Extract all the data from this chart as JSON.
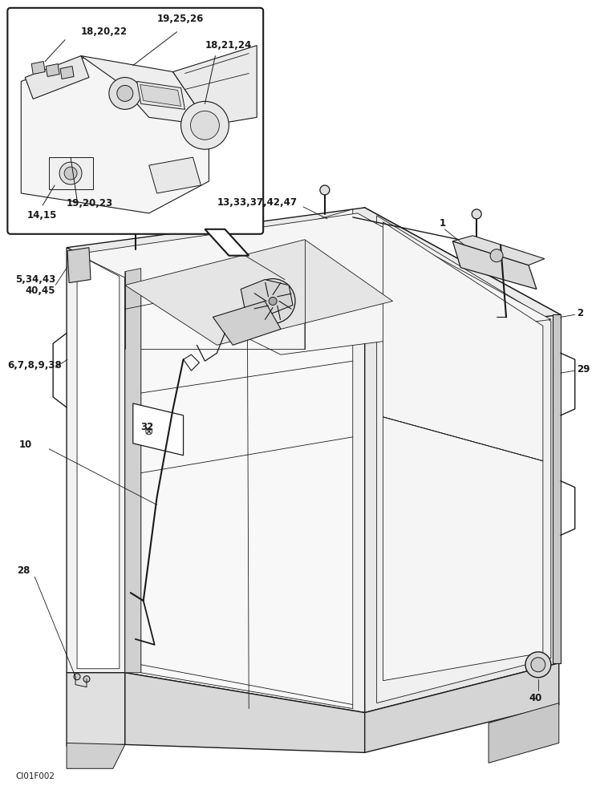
{
  "bg_color": "#ffffff",
  "black": "#1a1a1a",
  "gray_light": "#f0f0f0",
  "gray_mid": "#d8d8d8",
  "watermark": "CI01F002",
  "fig_width": 7.48,
  "fig_height": 10.0,
  "dpi": 100
}
